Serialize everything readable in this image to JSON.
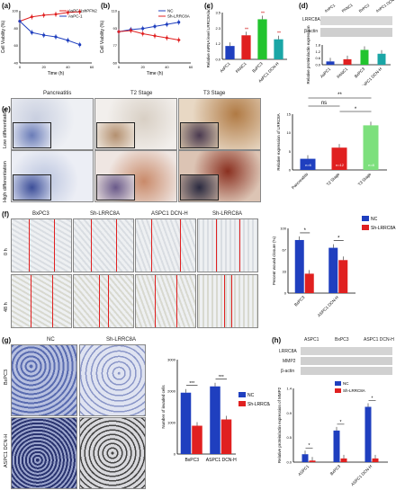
{
  "panels": {
    "a": {
      "label": "(a)",
      "ylabel": "Cell Viability (%)",
      "xlabel": "Time (h)",
      "legend": [
        "AsPC-1shPFN2",
        "AsPC-1"
      ]
    },
    "b": {
      "label": "(b)",
      "ylabel": "Cell Viability (%)",
      "xlabel": "Time (h)",
      "legend": [
        "NC",
        "Sh-LRRC8A"
      ]
    },
    "c": {
      "label": "(c)",
      "ylabel": "Relative mRNA level LRRC8A/actin",
      "categories": [
        "AsPC1",
        "PANC1",
        "BxPC3",
        "AsPC1 DCN-H"
      ],
      "annot": [
        "**",
        "**",
        "**"
      ]
    },
    "d": {
      "label": "(d)",
      "cols": [
        "AsPC1",
        "PANC1",
        "BxPC3",
        "AsPC1 DCN-H"
      ],
      "rows": [
        "LRRC8A",
        "β-actin"
      ],
      "ylabel": "Relative protein/actin expression"
    },
    "e": {
      "label": "(e)",
      "cols": [
        "Pancreatitis",
        "T2 Stage",
        "T3 Stage"
      ],
      "rows": [
        "Low differentiation",
        "High differentiation"
      ],
      "ylabel": "Relative expression of LRRC8A",
      "ns": "ns",
      "sig": [
        "**",
        "*"
      ],
      "n": [
        "n=6",
        "n=12",
        "n=8"
      ]
    },
    "f": {
      "label": "(f)",
      "cols": [
        "BxPC3",
        "Sh-LRRC8A",
        "ASPC1 DCN-H",
        "Sh-LRRC8A"
      ],
      "rows": [
        "0 h",
        "48 h"
      ],
      "ylabel": "Percent wound closure (%)",
      "legend": [
        "NC",
        "Sh-LRRC8A"
      ],
      "sig": [
        "*",
        "*"
      ]
    },
    "g": {
      "label": "(g)",
      "cols": [
        "NC",
        "Sh-LRRC8A"
      ],
      "rows": [
        "BxPC3",
        "ASPC1 DCN-H"
      ],
      "ylabel": "Number of invaded cells",
      "legend": [
        "NC",
        "Sh-LRRC8A"
      ],
      "sig": [
        "***",
        "***"
      ]
    },
    "h": {
      "label": "(h)",
      "cols": [
        "ASPC1",
        "BxPC3",
        "ASPC1 DCN-H"
      ],
      "sub": [
        "NC",
        "Sh-LRRC8A"
      ],
      "rows": [
        "LRRC8A",
        "MMP2",
        "β-actin"
      ],
      "ylabel": "Relative protein/actin expression of MMP2",
      "legend": [
        "NC",
        "Sh-LRRC8A"
      ],
      "sig": [
        "*",
        "*",
        "*"
      ]
    }
  },
  "colors": {
    "blue": "#1f3fbf",
    "red": "#e02020",
    "green": "#22c42e",
    "teal": "#1aa6a6",
    "lightgreen": "#7de07d"
  },
  "chart_data": [
    {
      "type": "line",
      "id": "a",
      "x": [
        0,
        10,
        20,
        30,
        40,
        50
      ],
      "series": [
        {
          "name": "AsPC-1shPFN2",
          "values": [
            88,
            93,
            95,
            96,
            98,
            99
          ]
        },
        {
          "name": "AsPC-1",
          "values": [
            88,
            75,
            72,
            70,
            66,
            61
          ]
        }
      ],
      "xlim": [
        0,
        60
      ],
      "ylim": [
        40,
        100
      ]
    },
    {
      "type": "line",
      "id": "b",
      "x": [
        0,
        10,
        20,
        30,
        40,
        50
      ],
      "series": [
        {
          "name": "NC",
          "values": [
            90,
            92,
            93,
            95,
            97,
            99
          ]
        },
        {
          "name": "Sh-LRRC8A",
          "values": [
            90,
            91,
            88,
            86,
            84,
            82
          ]
        }
      ],
      "xlim": [
        0,
        60
      ],
      "ylim": [
        60,
        110
      ]
    },
    {
      "type": "bar",
      "id": "c",
      "categories": [
        "AsPC1",
        "PANC1",
        "BxPC3",
        "AsPC1 DCN-H"
      ],
      "values": [
        1.0,
        1.8,
        3.0,
        1.5
      ],
      "ylim": [
        0,
        3.5
      ]
    },
    {
      "type": "bar",
      "id": "d",
      "categories": [
        "AsPC1",
        "PANC1",
        "BxPC3",
        "AsPC1 DCN-H"
      ],
      "values": [
        0.3,
        0.5,
        1.35,
        1.0
      ],
      "ylim": [
        0,
        1.8
      ]
    },
    {
      "type": "bar",
      "id": "e",
      "categories": [
        "Pancreatitis",
        "T2 Stage",
        "T3 Stage"
      ],
      "values": [
        3,
        6,
        12
      ],
      "ylim": [
        0,
        15
      ]
    },
    {
      "type": "bar",
      "id": "f",
      "categories": [
        "BxPC3",
        "ASPC1 DCN-H"
      ],
      "series": [
        {
          "name": "NC",
          "values": [
            82,
            70
          ]
        },
        {
          "name": "Sh-LRRC8A",
          "values": [
            30,
            51
          ]
        }
      ],
      "ylim": [
        0,
        100
      ]
    },
    {
      "type": "bar",
      "id": "g",
      "categories": [
        "BxPC3",
        "ASPC1 DCN-H"
      ],
      "series": [
        {
          "name": "NC",
          "values": [
            1950,
            2150
          ]
        },
        {
          "name": "Sh-LRRC8A",
          "values": [
            900,
            1100
          ]
        }
      ],
      "ylim": [
        0,
        3000
      ]
    },
    {
      "type": "bar",
      "id": "h",
      "categories": [
        "ASPC1",
        "BxPC3",
        "ASPC1 DCN-H"
      ],
      "series": [
        {
          "name": "NC",
          "values": [
            0.15,
            0.6,
            1.05
          ]
        },
        {
          "name": "Sh-LRRC8A",
          "values": [
            0.03,
            0.07,
            0.07
          ]
        }
      ],
      "ylim": [
        0,
        1.4
      ]
    }
  ]
}
